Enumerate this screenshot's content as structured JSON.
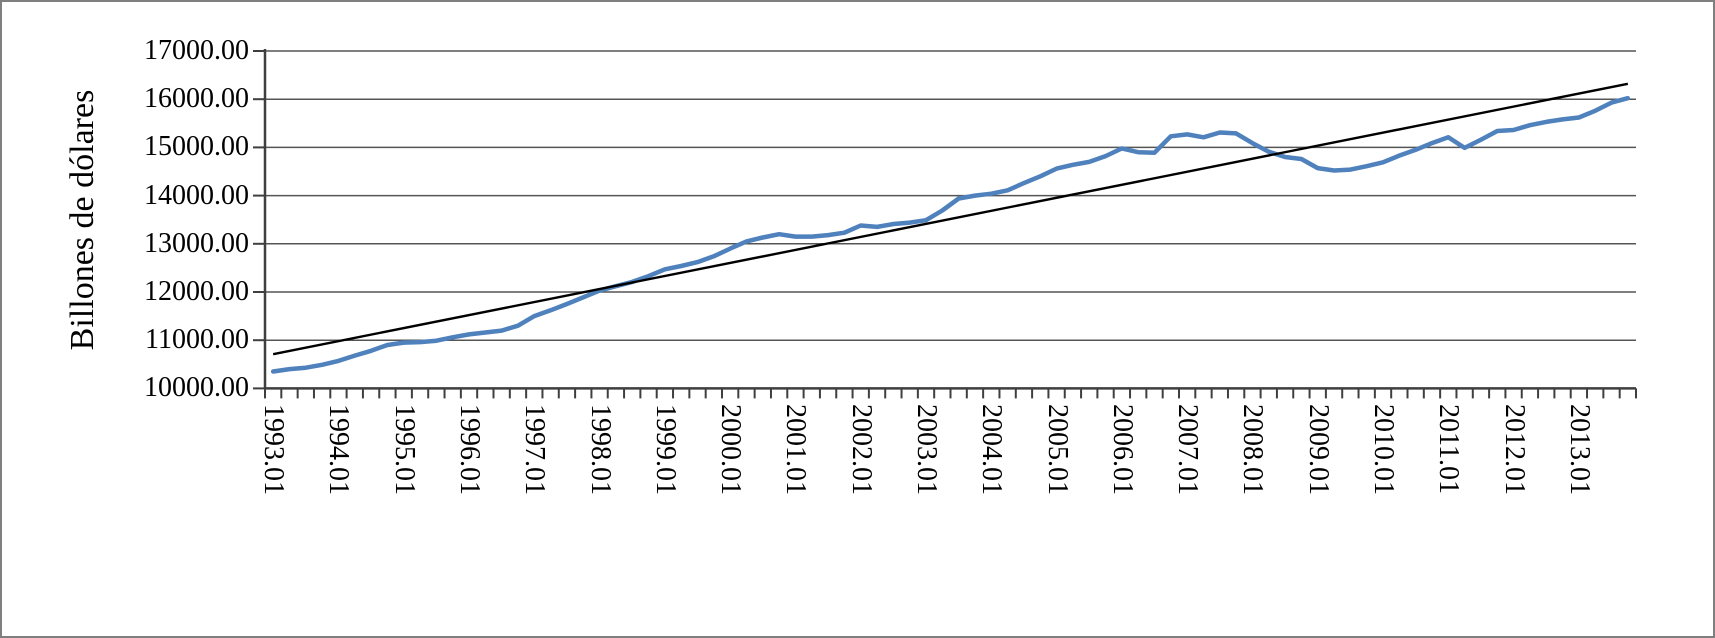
{
  "chart_data": {
    "type": "line",
    "title": "",
    "ylabel": "Billones de dólares",
    "xlabel": "",
    "ylim": [
      10000,
      17000
    ],
    "ytick_step": 1000,
    "ytick_labels": [
      "10000.00",
      "11000.00",
      "12000.00",
      "13000.00",
      "14000.00",
      "15000.00",
      "16000.00",
      "17000.00"
    ],
    "x_labels": [
      "1993.01",
      "1994.01",
      "1995.01",
      "1996.01",
      "1997.01",
      "1998.01",
      "1999.01",
      "2000.01",
      "2001.01",
      "2002.01",
      "2003.01",
      "2004.01",
      "2005.01",
      "2006.01",
      "2007.01",
      "2008.01",
      "2009.01",
      "2010.01",
      "2011.01",
      "2012.01",
      "2013.01"
    ],
    "x_label_every_n_points": 4,
    "x_frequency": "quarterly",
    "x_range": "1993.01 - 2013.04",
    "grid": "horizontal",
    "legend_position": "none",
    "series": [
      {
        "name": "observed-series",
        "color": "#4F81BD",
        "stroke_width": 4.5,
        "values": [
          10350,
          10400,
          10430,
          10490,
          10570,
          10680,
          10780,
          10900,
          10950,
          10960,
          10990,
          11060,
          11120,
          11160,
          11200,
          11300,
          11500,
          11620,
          11750,
          11890,
          12030,
          12120,
          12210,
          12330,
          12470,
          12540,
          12620,
          12740,
          12900,
          13050,
          13130,
          13200,
          13150,
          13150,
          13180,
          13230,
          13380,
          13350,
          13410,
          13440,
          13490,
          13690,
          13940,
          14000,
          14040,
          14110,
          14260,
          14400,
          14560,
          14640,
          14700,
          14820,
          14980,
          14900,
          14890,
          15230,
          15270,
          15210,
          15310,
          15290,
          15090,
          14910,
          14800,
          14760,
          14570,
          14520,
          14540,
          14610,
          14690,
          14830,
          14950,
          15090,
          15210,
          14990,
          15160,
          15340,
          15360,
          15460,
          15530,
          15580,
          15620,
          15760,
          15930,
          16020
        ]
      },
      {
        "name": "linear-trend",
        "color": "#000000",
        "stroke_width": 2.4,
        "endpoints": [
          10710,
          16320
        ]
      }
    ]
  },
  "style_colors": {
    "axis": "#3f3f3f",
    "gridline": "#555555",
    "tick": "#3f3f3f",
    "figure_border": "#7f7f7f",
    "background": "#ffffff"
  }
}
